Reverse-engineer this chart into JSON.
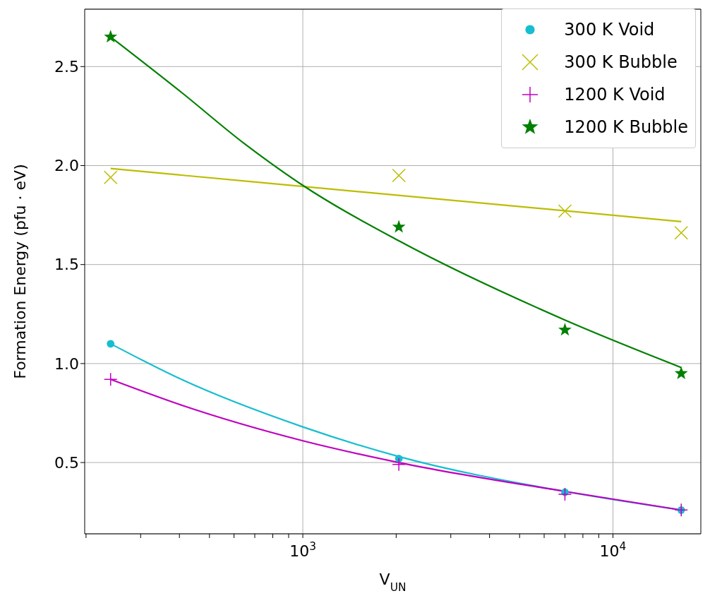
{
  "chart_data": {
    "type": "scatter",
    "xlabel": "V$_{UN}$",
    "ylabel": "Formation Energy (pfu · eV)",
    "log": "x",
    "grid": true,
    "legend": "top right",
    "xlim": [
      198,
      19200
    ],
    "ylim": [
      0.14,
      2.79
    ],
    "xticks": [
      {
        "value": 200,
        "label": null
      },
      {
        "value": 300,
        "label": null
      },
      {
        "value": 400,
        "label": null
      },
      {
        "value": 500,
        "label": null
      },
      {
        "value": 600,
        "label": null
      },
      {
        "value": 700,
        "label": null
      },
      {
        "value": 800,
        "label": null
      },
      {
        "value": 900,
        "label": null
      },
      {
        "value": 1000,
        "label": "10$^{3}$"
      },
      {
        "value": 2000,
        "label": null
      },
      {
        "value": 3000,
        "label": null
      },
      {
        "value": 4000,
        "label": null
      },
      {
        "value": 5000,
        "label": null
      },
      {
        "value": 6000,
        "label": null
      },
      {
        "value": 7000,
        "label": null
      },
      {
        "value": 8000,
        "label": null
      },
      {
        "value": 9000,
        "label": null
      },
      {
        "value": 10000,
        "label": "10$^{4}$"
      }
    ],
    "yticks": [
      0.5,
      {
        "value": 1,
        "label": "1.0"
      },
      1.5,
      {
        "value": 2,
        "label": "2.0"
      },
      2.5
    ],
    "x": [
      240,
      2040,
      7000,
      16600
    ],
    "series": [
      {
        "name": "300 K Void",
        "marker": "circle",
        "color": "#17becf",
        "values": [
          1.1,
          0.52,
          0.35,
          0.26
        ]
      },
      {
        "name": "300 K Bubble",
        "marker": "x",
        "color": "#bcbd00",
        "values": [
          1.94,
          1.95,
          1.77,
          1.66
        ]
      },
      {
        "name": "1200 K Void",
        "marker": "cross",
        "color": "#bf00bf",
        "values": [
          0.92,
          0.49,
          0.34,
          0.26
        ]
      },
      {
        "name": "1200 K Bubble",
        "marker": "star",
        "color": "#008000",
        "values": [
          2.65,
          1.69,
          1.17,
          0.95
        ]
      },
      {
        "type": "line",
        "color": "#bcbd00",
        "x": [
          240,
          16600
        ],
        "values": [
          1.985,
          1.717
        ]
      },
      {
        "type": "line",
        "color": "#008000",
        "x": [
          240,
          406,
          649,
          1000,
          2040,
          7000,
          16600
        ],
        "values": [
          2.65,
          2.37,
          2.11,
          1.9,
          1.62,
          1.22,
          0.98
        ]
      },
      {
        "type": "line",
        "color": "#17becf",
        "x": [
          240,
          406,
          1000,
          2040,
          7000,
          16600
        ],
        "values": [
          1.1,
          0.92,
          0.68,
          0.53,
          0.354,
          0.26
        ]
      },
      {
        "type": "line",
        "color": "#bf00bf",
        "x": [
          240,
          406,
          1000,
          2040,
          7000,
          16600
        ],
        "values": [
          0.92,
          0.79,
          0.61,
          0.5,
          0.354,
          0.26
        ]
      }
    ]
  }
}
